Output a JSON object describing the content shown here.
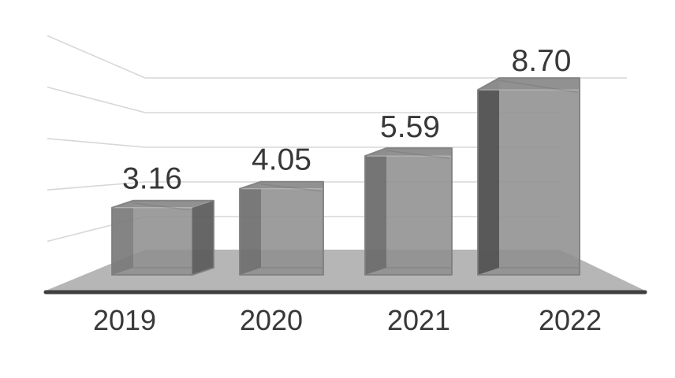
{
  "chart_data": {
    "type": "bar",
    "style": "3d-perspective-columns",
    "title": "",
    "xlabel": "",
    "ylabel": "",
    "categories": [
      "2019",
      "2020",
      "2021",
      "2022"
    ],
    "values": [
      3.16,
      4.05,
      5.59,
      8.7
    ],
    "value_labels": [
      "3.16",
      "4.05",
      "5.59",
      "8.70"
    ],
    "ylim": [
      0,
      10
    ],
    "gridline_values": [
      10,
      8,
      6,
      4,
      2
    ],
    "grid": true,
    "legend": false,
    "colors": {
      "background": "#ffffff",
      "gridline": "#d7d7d7",
      "floor": "#b6b6b6",
      "baseline": "#3f3f3f",
      "bar_front": "#909090",
      "bar_top": "#8d8d8d",
      "bar_top_edge": "#bcbcbc",
      "bar_side_dark": "#5e5e5e",
      "bar_inner_dark": "#4d4d4d",
      "bar_outline": "#7e7e7e",
      "label_text": "#383838"
    }
  }
}
